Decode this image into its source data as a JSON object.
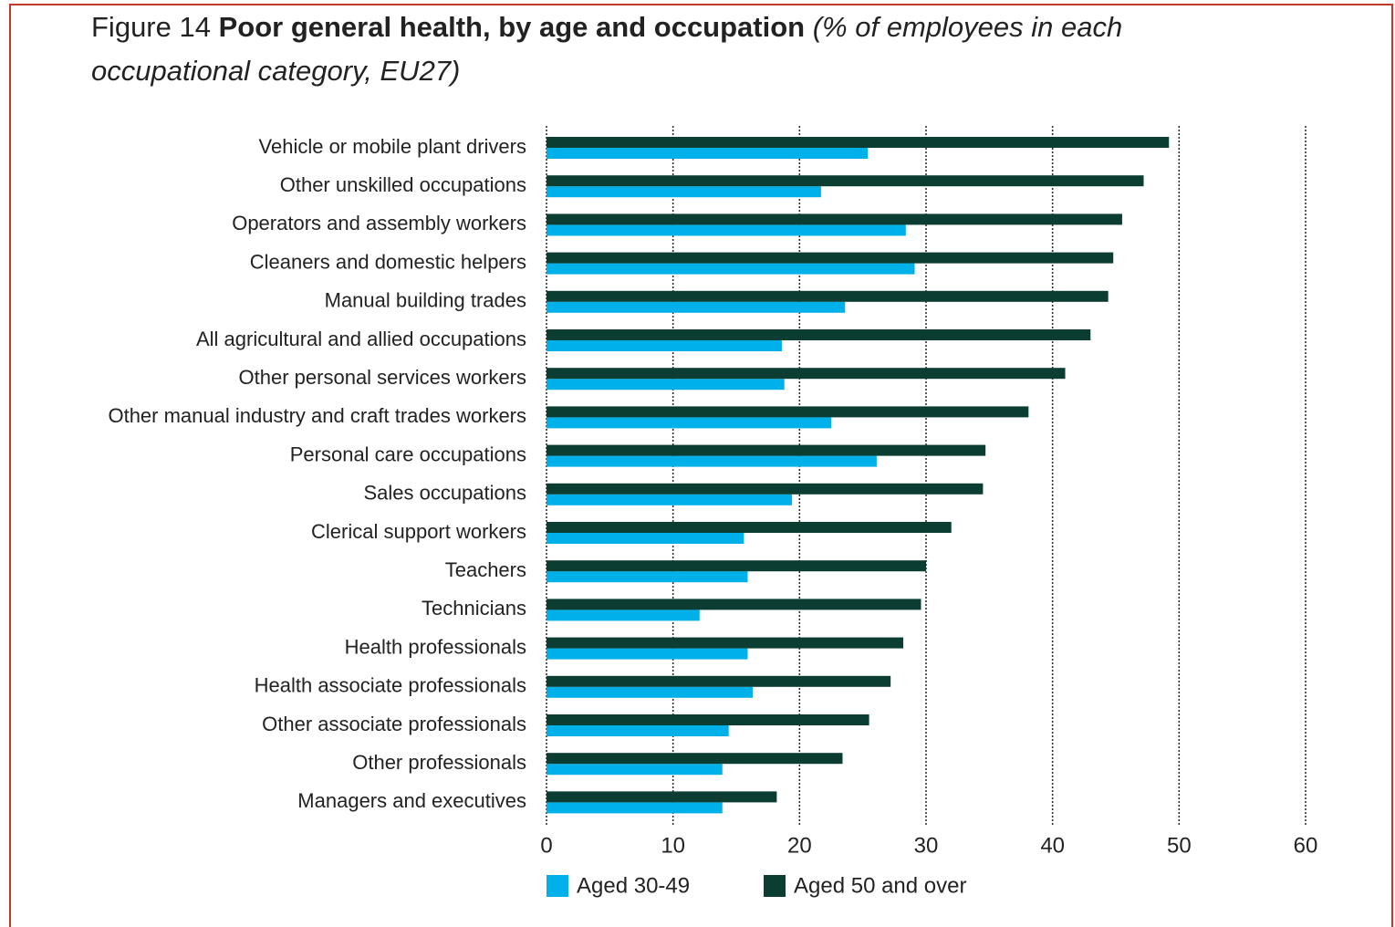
{
  "chart_data": {
    "type": "bar",
    "orientation": "horizontal",
    "figure_label": "Figure 14",
    "title": "Poor general health, by age and occupation",
    "subtitle": "(% of employees in each occupational category, EU27)",
    "categories": [
      "Vehicle or mobile plant drivers",
      "Other unskilled occupations",
      "Operators and assembly workers",
      "Cleaners and domestic helpers",
      "Manual building trades",
      "All agricultural and allied occupations",
      "Other personal services workers",
      "Other manual industry and craft trades workers",
      "Personal care occupations",
      "Sales occupations",
      "Clerical support workers",
      "Teachers",
      "Technicians",
      "Health professionals",
      "Health associate professionals",
      "Other associate professionals",
      "Other professionals",
      "Managers and executives"
    ],
    "series": [
      {
        "name": "Aged 30-49",
        "color": "#00b0e8",
        "values": [
          25.4,
          21.7,
          28.4,
          29.1,
          23.6,
          18.6,
          18.8,
          22.5,
          26.1,
          19.4,
          15.6,
          15.9,
          12.1,
          15.9,
          16.3,
          14.4,
          13.9,
          13.9
        ]
      },
      {
        "name": "Aged 50 and over",
        "color": "#0b3d33",
        "values": [
          49.2,
          47.2,
          45.5,
          44.8,
          44.4,
          43.0,
          41.0,
          38.1,
          34.7,
          34.5,
          32.0,
          30.0,
          29.6,
          28.2,
          27.2,
          25.5,
          23.4,
          18.2
        ]
      }
    ],
    "xlim": [
      0,
      60
    ],
    "xticks": [
      0,
      10,
      20,
      30,
      40,
      50,
      60
    ],
    "grid": true
  }
}
